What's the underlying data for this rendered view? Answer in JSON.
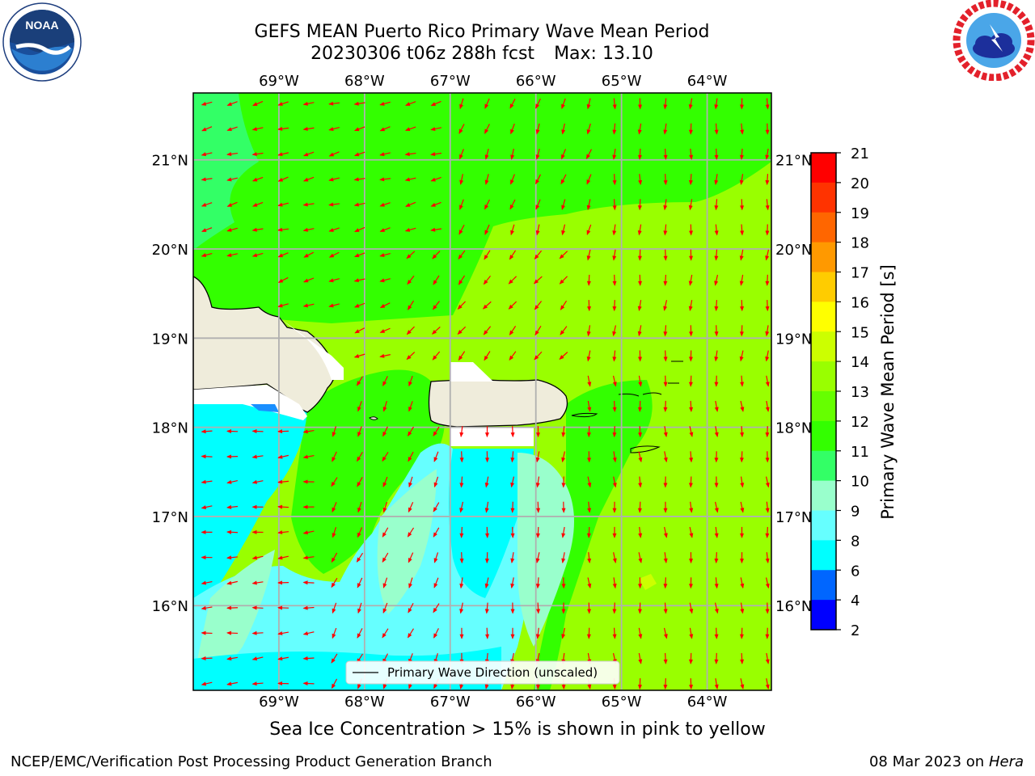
{
  "title": {
    "line1": "GEFS MEAN Puerto Rico Primary Wave Mean Period",
    "run": "20230306 t06z 288h fcst",
    "max": "Max: 13.10"
  },
  "logos": {
    "noaa": {
      "text": "NOAA",
      "icon": "noaa-logo"
    },
    "nws": {
      "icon": "nws-logo"
    }
  },
  "map": {
    "lon_labels": [
      "69°W",
      "68°W",
      "67°W",
      "66°W",
      "65°W",
      "64°W"
    ],
    "lat_labels": [
      "21°N",
      "20°N",
      "19°N",
      "18°N",
      "17°N",
      "16°N"
    ],
    "extent": {
      "lon": [
        -70.0,
        -63.25
      ],
      "lat": [
        15.05,
        21.75
      ]
    },
    "legend_label": "Primary Wave Direction (unscaled)",
    "arrow_color": "#ff0000"
  },
  "colorbar": {
    "label": "Primary Wave Mean Period [s]",
    "ticks": [
      "21",
      "20",
      "19",
      "18",
      "17",
      "16",
      "15",
      "14",
      "13",
      "12",
      "11",
      "10",
      "9",
      "8",
      "6",
      "4",
      "2"
    ],
    "colors": [
      "#ff0000",
      "#ff3300",
      "#ff6600",
      "#ff9900",
      "#ffcc00",
      "#ffff00",
      "#ccff00",
      "#99ff00",
      "#66ff00",
      "#33ff00",
      "#33ff66",
      "#99ffcc",
      "#66ffff",
      "#00ffff",
      "#0066ff",
      "#0000ff"
    ]
  },
  "subtitle": "Sea Ice Concentration > 15% is shown in pink to yellow",
  "footer": {
    "left": "NCEP/EMC/Verification Post Processing Product Generation Branch",
    "date": "08 Mar 2023 on",
    "machine": "Hera"
  }
}
